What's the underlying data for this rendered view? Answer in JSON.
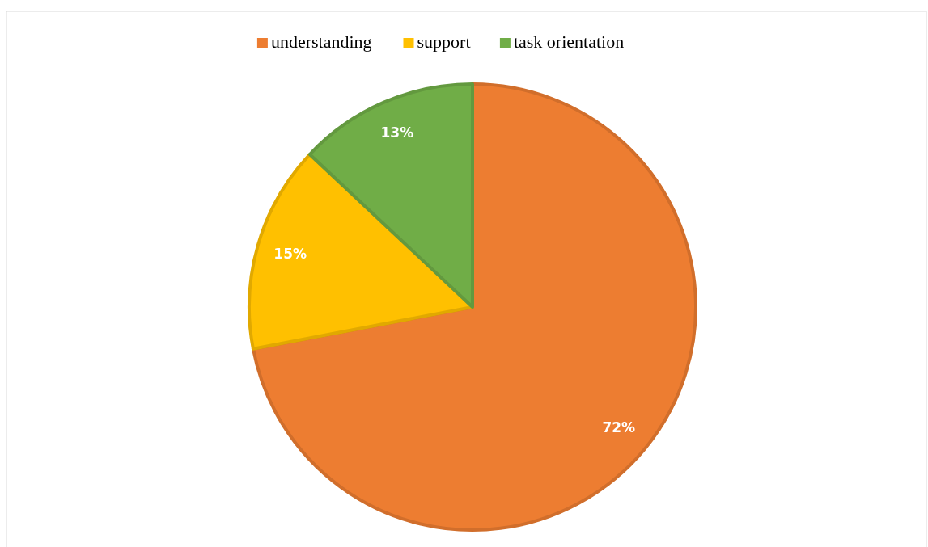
{
  "chart_data": {
    "type": "pie",
    "categories": [
      "understanding",
      "support",
      "task orientation"
    ],
    "values": [
      72,
      15,
      13
    ],
    "colors": [
      "#ed7d31",
      "#ffc000",
      "#70ad47"
    ],
    "value_labels": [
      "72%",
      "15%",
      "13%"
    ],
    "legend": "top"
  }
}
